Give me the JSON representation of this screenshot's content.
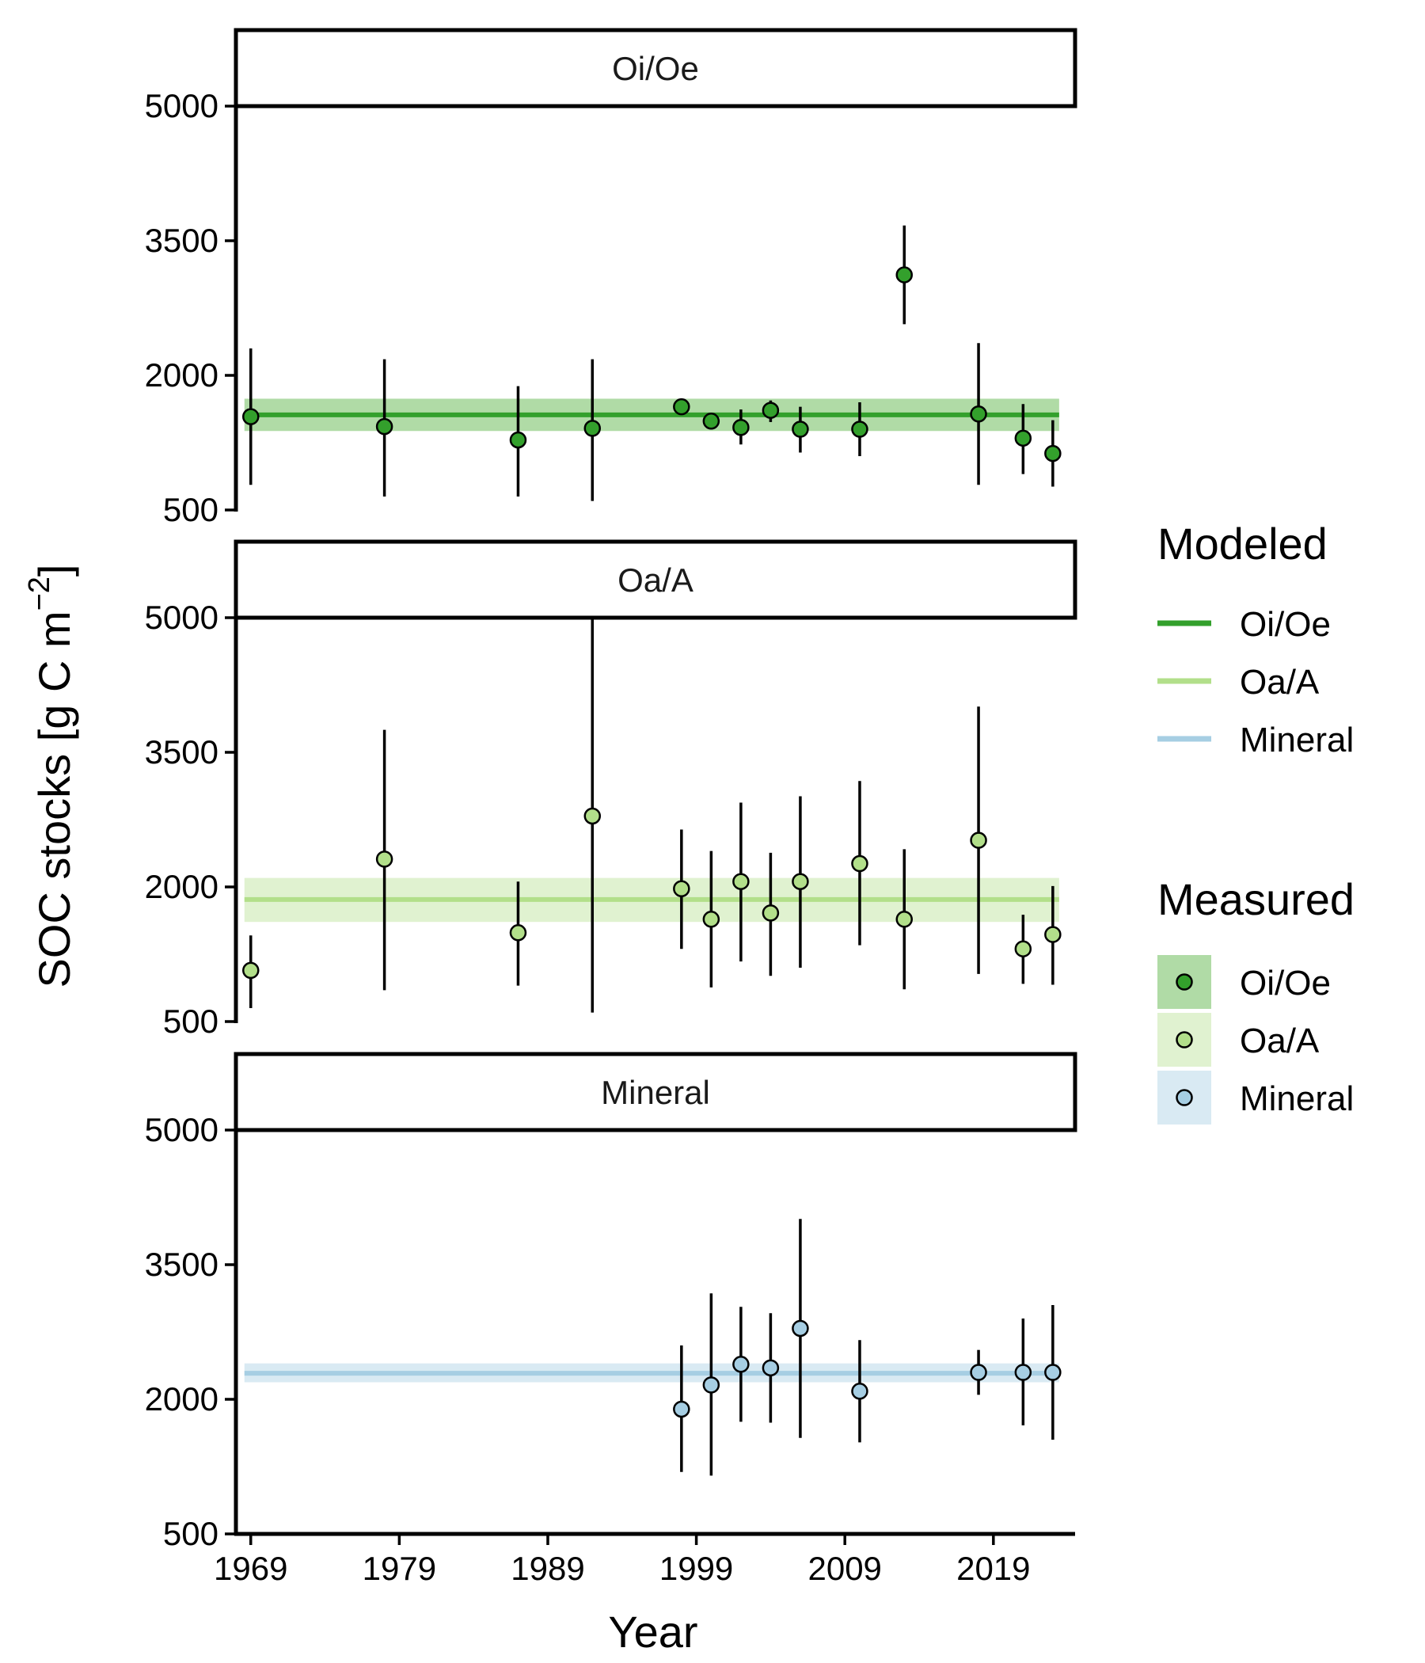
{
  "chart_data": {
    "type": "scatter",
    "xlabel": "Year",
    "ylabel_main": "SOC stocks [g C m",
    "ylabel_minus": "−",
    "ylabel_sup": "2",
    "ylabel_close": "]",
    "xlim": [
      1968,
      2024.5
    ],
    "ylim": [
      500,
      5000
    ],
    "x_ticks": [
      1969,
      1979,
      1989,
      1999,
      2009,
      2019
    ],
    "x_tick_labels": [
      "1969",
      "1979",
      "1989",
      "1999",
      "2009",
      "2019"
    ],
    "y_ticks": [
      500,
      2000,
      3500,
      5000
    ],
    "y_tick_labels": [
      "500",
      "2000",
      "3500",
      "5000"
    ],
    "colors": {
      "Oi/Oe": "#33a02c",
      "Oa/A": "#b2df8a",
      "Mineral": "#a6cee3",
      "Oi/Oe_band": "#b0dba6",
      "Oa/A_band": "#e0f2d0",
      "Mineral_band": "#d9eaf3"
    },
    "panels": [
      {
        "name": "Oi/Oe",
        "modeled": {
          "mean": 1560,
          "lower": 1380,
          "upper": 1740
        },
        "measured": [
          {
            "year": 1969,
            "value": 1540,
            "lower": 780,
            "upper": 2300
          },
          {
            "year": 1978,
            "value": 1430,
            "lower": 650,
            "upper": 2180
          },
          {
            "year": 1987,
            "value": 1280,
            "lower": 650,
            "upper": 1880
          },
          {
            "year": 1992,
            "value": 1410,
            "lower": 600,
            "upper": 2180
          },
          {
            "year": 1998,
            "value": 1650,
            "lower": 1650,
            "upper": 1650
          },
          {
            "year": 2000,
            "value": 1490,
            "lower": 1490,
            "upper": 1490
          },
          {
            "year": 2002,
            "value": 1420,
            "lower": 1230,
            "upper": 1620
          },
          {
            "year": 2004,
            "value": 1610,
            "lower": 1480,
            "upper": 1720
          },
          {
            "year": 2006,
            "value": 1400,
            "lower": 1140,
            "upper": 1650
          },
          {
            "year": 2010,
            "value": 1400,
            "lower": 1100,
            "upper": 1700
          },
          {
            "year": 2013,
            "value": 3120,
            "lower": 2570,
            "upper": 3670
          },
          {
            "year": 2018,
            "value": 1570,
            "lower": 780,
            "upper": 2360
          },
          {
            "year": 2021,
            "value": 1300,
            "lower": 900,
            "upper": 1680
          },
          {
            "year": 2023,
            "value": 1130,
            "lower": 760,
            "upper": 1500
          }
        ]
      },
      {
        "name": "Oa/A",
        "modeled": {
          "mean": 1860,
          "lower": 1610,
          "upper": 2100
        },
        "measured": [
          {
            "year": 1969,
            "value": 1070,
            "lower": 650,
            "upper": 1460
          },
          {
            "year": 1978,
            "value": 2310,
            "lower": 850,
            "upper": 3750
          },
          {
            "year": 1987,
            "value": 1490,
            "lower": 900,
            "upper": 2060
          },
          {
            "year": 1992,
            "value": 2790,
            "lower": 600,
            "upper": 4980
          },
          {
            "year": 1998,
            "value": 1980,
            "lower": 1310,
            "upper": 2640
          },
          {
            "year": 2000,
            "value": 1640,
            "lower": 880,
            "upper": 2400
          },
          {
            "year": 2002,
            "value": 2060,
            "lower": 1170,
            "upper": 2940
          },
          {
            "year": 2004,
            "value": 1710,
            "lower": 1010,
            "upper": 2380
          },
          {
            "year": 2006,
            "value": 2060,
            "lower": 1100,
            "upper": 3010
          },
          {
            "year": 2010,
            "value": 2260,
            "lower": 1350,
            "upper": 3180
          },
          {
            "year": 2013,
            "value": 1640,
            "lower": 860,
            "upper": 2420
          },
          {
            "year": 2018,
            "value": 2520,
            "lower": 1030,
            "upper": 4010
          },
          {
            "year": 2021,
            "value": 1310,
            "lower": 920,
            "upper": 1690
          },
          {
            "year": 2023,
            "value": 1470,
            "lower": 910,
            "upper": 2010
          }
        ]
      },
      {
        "name": "Mineral",
        "modeled": {
          "mean": 2290,
          "lower": 2190,
          "upper": 2400
        },
        "measured": [
          {
            "year": 1998,
            "value": 1890,
            "lower": 1190,
            "upper": 2600
          },
          {
            "year": 2000,
            "value": 2160,
            "lower": 1150,
            "upper": 3180
          },
          {
            "year": 2002,
            "value": 2390,
            "lower": 1750,
            "upper": 3030
          },
          {
            "year": 2004,
            "value": 2350,
            "lower": 1740,
            "upper": 2960
          },
          {
            "year": 2006,
            "value": 2790,
            "lower": 1570,
            "upper": 4010
          },
          {
            "year": 2010,
            "value": 2090,
            "lower": 1520,
            "upper": 2660
          },
          {
            "year": 2018,
            "value": 2300,
            "lower": 2050,
            "upper": 2550
          },
          {
            "year": 2021,
            "value": 2300,
            "lower": 1710,
            "upper": 2900
          },
          {
            "year": 2023,
            "value": 2300,
            "lower": 1550,
            "upper": 3050
          }
        ]
      }
    ],
    "legend": {
      "placement": "right",
      "modeled_title": "Modeled",
      "measured_title": "Measured",
      "entries": [
        "Oi/Oe",
        "Oa/A",
        "Mineral"
      ]
    }
  }
}
